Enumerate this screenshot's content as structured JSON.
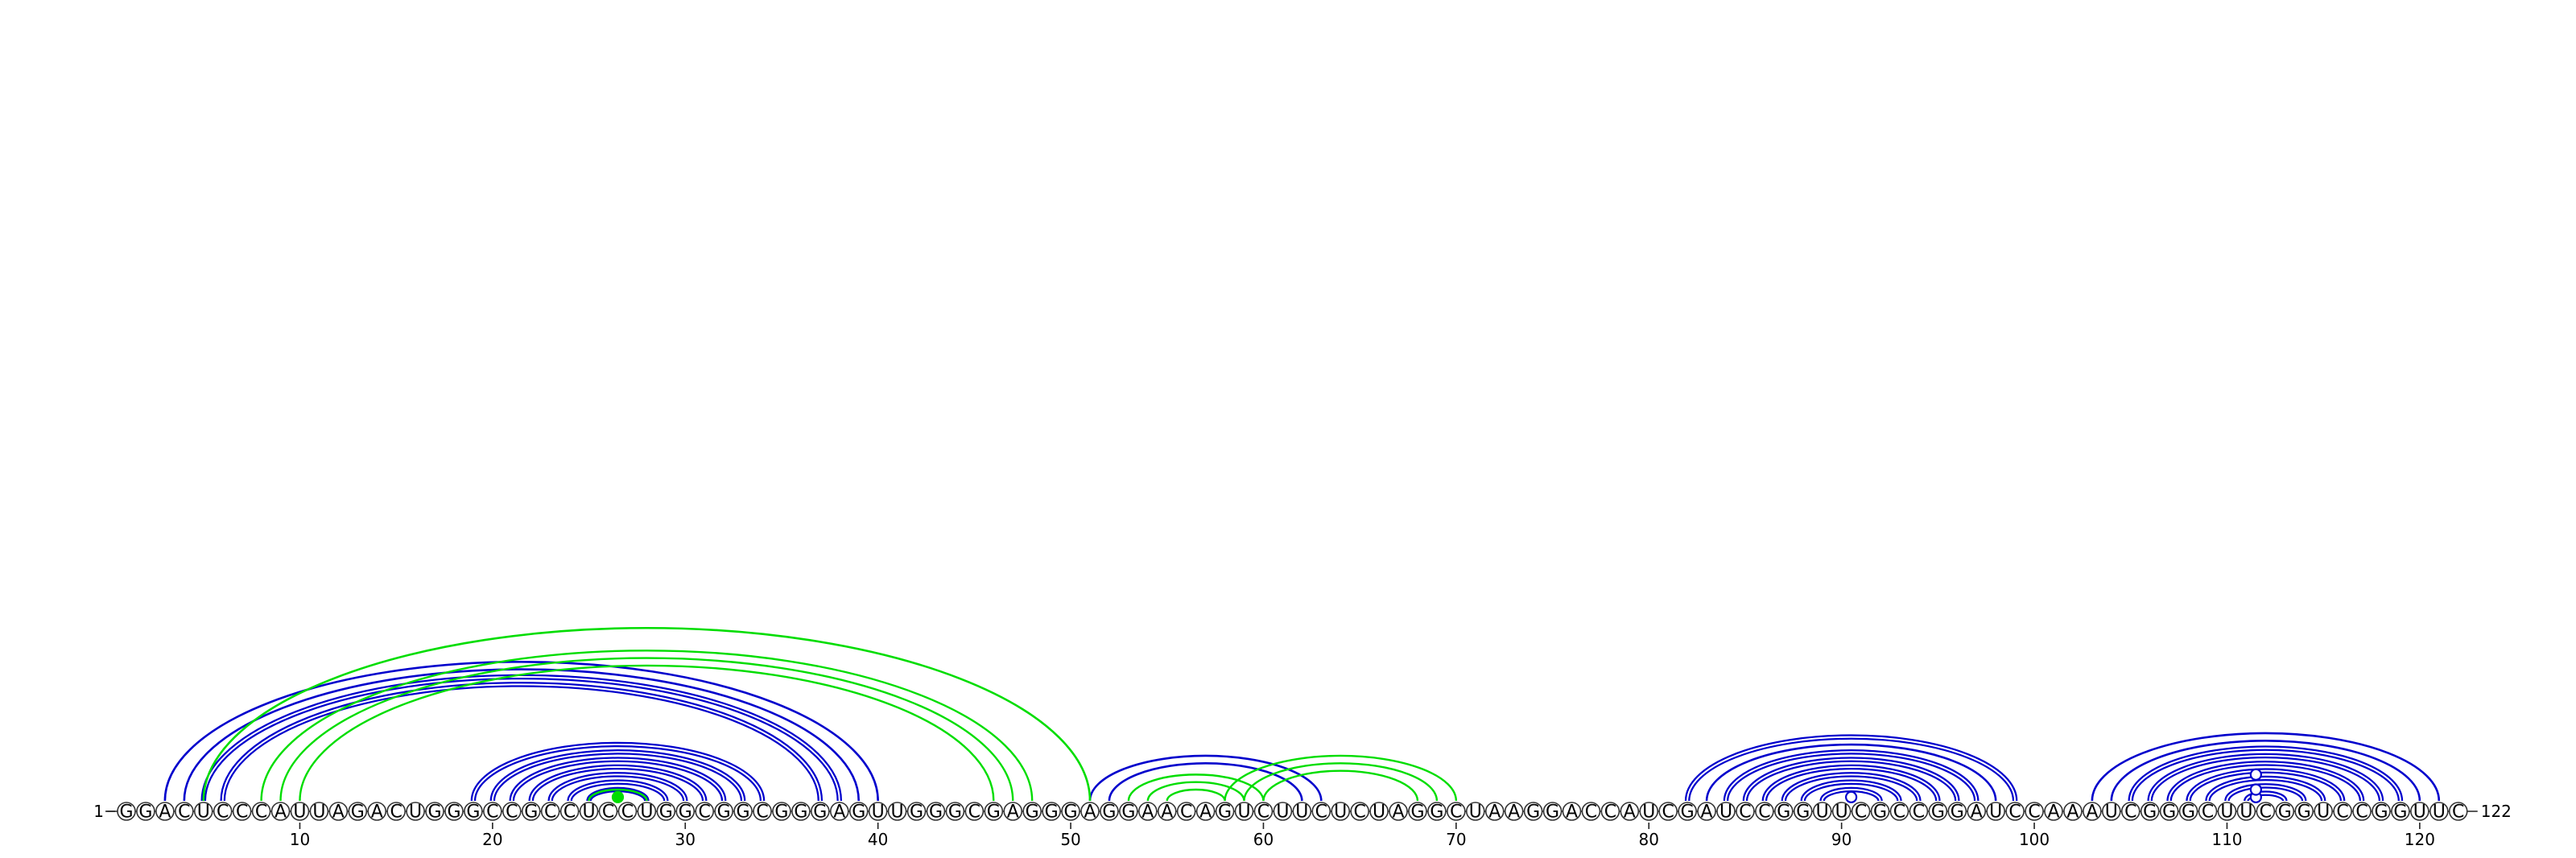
{
  "diagram": {
    "type": "rna-arc-diagram",
    "sequence": "GGACUCCCAUUAGACUGGGCCGCCUCCUGGCGGCGGGAGUUGGGCGAGGGAGGAACAGUCUUCUCUAGGCUAAGGACCAUCGAUCCGGUUCGCCGGAUCCAAAUCGGGCUUCGGUCCGGUUC",
    "start_label": "1",
    "end_label": "122",
    "ticks": [
      10,
      20,
      30,
      40,
      50,
      60,
      70,
      80,
      90,
      100,
      110,
      120
    ],
    "colors": {
      "primary": "#0000cc",
      "secondary": "#00dd00",
      "node_stroke": "#333333",
      "node_fill": "#ffffff"
    },
    "helices": [
      {
        "color": "primary",
        "start": 3,
        "end": 40,
        "length": 1,
        "double": false
      },
      {
        "color": "primary",
        "start": 4,
        "end": 39,
        "length": 1,
        "double": false
      },
      {
        "color": "primary",
        "start": 5,
        "end": 38,
        "length": 1,
        "double": true
      },
      {
        "color": "primary",
        "start": 6,
        "end": 37,
        "length": 1,
        "double": true
      },
      {
        "color": "primary",
        "start": 19,
        "end": 34,
        "length": 1,
        "double": true
      },
      {
        "color": "primary",
        "start": 20,
        "end": 33,
        "length": 1,
        "double": true
      },
      {
        "color": "primary",
        "start": 21,
        "end": 32,
        "length": 1,
        "double": true
      },
      {
        "color": "primary",
        "start": 22,
        "end": 31,
        "length": 1,
        "double": true
      },
      {
        "color": "primary",
        "start": 23,
        "end": 30,
        "length": 1,
        "double": true
      },
      {
        "color": "primary",
        "start": 24,
        "end": 29,
        "length": 1,
        "double": true
      },
      {
        "color": "primary",
        "start": 25,
        "end": 28,
        "length": 1,
        "double": true
      },
      {
        "color": "primary",
        "start": 51,
        "end": 63,
        "length": 1,
        "double": false
      },
      {
        "color": "primary",
        "start": 52,
        "end": 62,
        "length": 1,
        "double": false
      },
      {
        "color": "primary",
        "start": 82,
        "end": 99,
        "length": 1,
        "double": true
      },
      {
        "color": "primary",
        "start": 83,
        "end": 98,
        "length": 1,
        "double": false
      },
      {
        "color": "primary",
        "start": 84,
        "end": 97,
        "length": 1,
        "double": true
      },
      {
        "color": "primary",
        "start": 85,
        "end": 96,
        "length": 1,
        "double": true
      },
      {
        "color": "primary",
        "start": 86,
        "end": 95,
        "length": 1,
        "double": true
      },
      {
        "color": "primary",
        "start": 87,
        "end": 94,
        "length": 1,
        "double": true
      },
      {
        "color": "primary",
        "start": 88,
        "end": 93,
        "length": 1,
        "double": true
      },
      {
        "color": "primary",
        "start": 89,
        "end": 92,
        "length": 1,
        "double": true
      },
      {
        "color": "primary",
        "start": 103,
        "end": 121,
        "length": 1,
        "double": false
      },
      {
        "color": "primary",
        "start": 104,
        "end": 120,
        "length": 1,
        "double": false
      },
      {
        "color": "primary",
        "start": 105,
        "end": 119,
        "length": 1,
        "double": true
      },
      {
        "color": "primary",
        "start": 106,
        "end": 118,
        "length": 1,
        "double": true
      },
      {
        "color": "primary",
        "start": 107,
        "end": 117,
        "length": 1,
        "double": true
      },
      {
        "color": "primary",
        "start": 108,
        "end": 116,
        "length": 1,
        "double": true
      },
      {
        "color": "primary",
        "start": 109,
        "end": 115,
        "length": 1,
        "double": true
      },
      {
        "color": "primary",
        "start": 110,
        "end": 114,
        "length": 1,
        "double": true
      },
      {
        "color": "primary",
        "start": 111,
        "end": 113,
        "length": 1,
        "double": true
      },
      {
        "color": "secondary",
        "start": 5,
        "end": 51,
        "length": 1,
        "double": false
      },
      {
        "color": "secondary",
        "start": 8,
        "end": 48,
        "length": 3,
        "double": false
      },
      {
        "color": "secondary",
        "start": 25,
        "end": 28,
        "length": 1,
        "double": false
      },
      {
        "color": "secondary",
        "start": 53,
        "end": 60,
        "length": 3,
        "double": false
      },
      {
        "color": "secondary",
        "start": 58,
        "end": 70,
        "length": 3,
        "double": false
      }
    ],
    "markers": [
      {
        "pos": 26.5,
        "level": 1,
        "color": "secondary",
        "filled": true
      },
      {
        "pos": 90.5,
        "level": 1,
        "color": "primary",
        "filled": false
      },
      {
        "pos": 111.5,
        "level": 1,
        "color": "primary",
        "filled": false
      },
      {
        "pos": 111.5,
        "level": 2,
        "color": "primary",
        "filled": false
      },
      {
        "pos": 111.5,
        "level": 4,
        "color": "primary",
        "filled": false
      }
    ]
  }
}
